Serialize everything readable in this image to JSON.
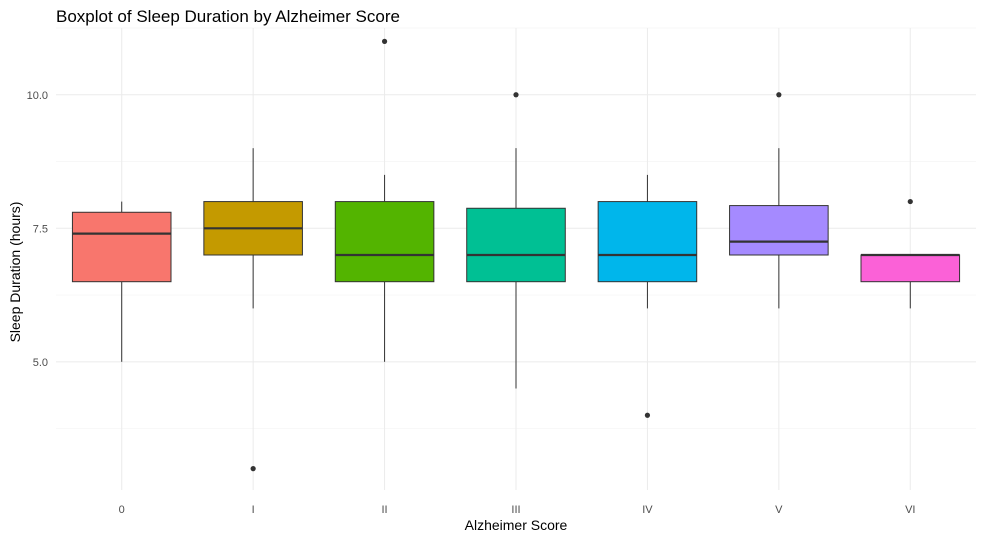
{
  "chart_data": {
    "type": "boxplot",
    "title": "Boxplot of Sleep Duration by Alzheimer Score",
    "xlabel": "Alzheimer Score",
    "ylabel": "Sleep Duration (hours)",
    "ylim": [
      2.6,
      11.25
    ],
    "yticks": [
      5.0,
      7.5,
      10.0
    ],
    "ytick_labels": [
      "5.0",
      "7.5",
      "10.0"
    ],
    "grid": true,
    "legend": "none",
    "categories": [
      "0",
      "I",
      "II",
      "III",
      "IV",
      "V",
      "VI"
    ],
    "colors": [
      "#F8766D",
      "#C49A00",
      "#53B400",
      "#00C094",
      "#00B6EB",
      "#A58AFF",
      "#FB61D7"
    ],
    "boxes": [
      {
        "category": "0",
        "whisker_low": 5.0,
        "q1": 6.5,
        "median": 7.4,
        "q3": 7.8,
        "whisker_high": 8.0,
        "outliers": []
      },
      {
        "category": "I",
        "whisker_low": 6.0,
        "q1": 7.0,
        "median": 7.5,
        "q3": 8.0,
        "whisker_high": 9.0,
        "outliers": [
          3.0
        ]
      },
      {
        "category": "II",
        "whisker_low": 5.0,
        "q1": 6.5,
        "median": 7.0,
        "q3": 8.0,
        "whisker_high": 8.5,
        "outliers": [
          11.0
        ]
      },
      {
        "category": "III",
        "whisker_low": 4.5,
        "q1": 6.5,
        "median": 7.0,
        "q3": 7.875,
        "whisker_high": 9.0,
        "outliers": [
          10.0
        ]
      },
      {
        "category": "IV",
        "whisker_low": 6.0,
        "q1": 6.5,
        "median": 7.0,
        "q3": 8.0,
        "whisker_high": 8.5,
        "outliers": [
          4.0
        ]
      },
      {
        "category": "V",
        "whisker_low": 6.0,
        "q1": 7.0,
        "median": 7.25,
        "q3": 7.925,
        "whisker_high": 9.0,
        "outliers": [
          10.0
        ]
      },
      {
        "category": "VI",
        "whisker_low": 6.0,
        "q1": 6.5,
        "median": 7.0,
        "q3": 7.0,
        "whisker_high": 7.0,
        "outliers": [
          8.0
        ]
      }
    ]
  }
}
